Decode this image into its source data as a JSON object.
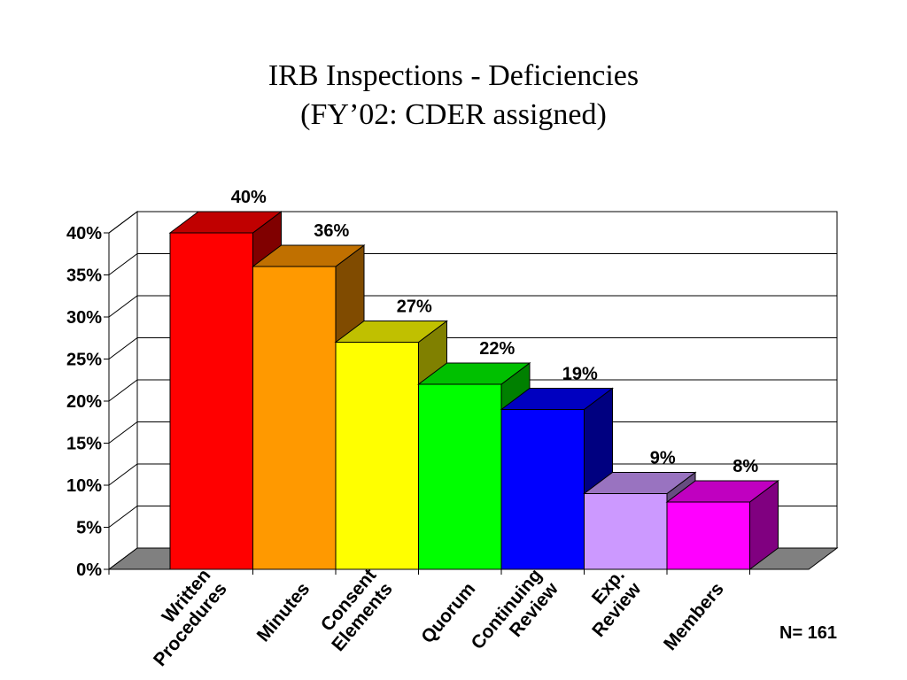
{
  "title": "IRB Inspections - Deficiencies",
  "subtitle": "(FY’02: CDER assigned)",
  "note": "N= 161",
  "chart_data": {
    "type": "bar",
    "title": "IRB Inspections - Deficiencies",
    "subtitle": "(FY’02: CDER assigned)",
    "xlabel": "",
    "ylabel": "",
    "ylim": [
      0,
      40
    ],
    "yticks": [
      0,
      5,
      10,
      15,
      20,
      25,
      30,
      35,
      40
    ],
    "ytick_labels": [
      "0%",
      "5%",
      "10%",
      "15%",
      "20%",
      "25%",
      "30%",
      "35%",
      "40%"
    ],
    "grid": true,
    "three_d": true,
    "categories": [
      {
        "lines": [
          "Written",
          "Procedures"
        ],
        "label": "Written Procedures"
      },
      {
        "lines": [
          "Minutes"
        ],
        "label": "Minutes"
      },
      {
        "lines": [
          "Consent",
          "Elements"
        ],
        "label": "Consent Elements"
      },
      {
        "lines": [
          "Quorum"
        ],
        "label": "Quorum"
      },
      {
        "lines": [
          "Continuing",
          "Review"
        ],
        "label": "Continuing Review"
      },
      {
        "lines": [
          "Exp.",
          "Review"
        ],
        "label": "Exp. Review"
      },
      {
        "lines": [
          "Members"
        ],
        "label": "Members"
      }
    ],
    "values": [
      40,
      36,
      27,
      22,
      19,
      9,
      8
    ],
    "data_labels": [
      "40%",
      "36%",
      "27%",
      "22%",
      "19%",
      "9%",
      "8%"
    ],
    "colors": [
      {
        "front": "#ff0000",
        "top": "#c00000",
        "side": "#800000"
      },
      {
        "front": "#ff9900",
        "top": "#c07000",
        "side": "#804b00"
      },
      {
        "front": "#ffff00",
        "top": "#c0c000",
        "side": "#808000"
      },
      {
        "front": "#00ff00",
        "top": "#00c000",
        "side": "#008000"
      },
      {
        "front": "#0000ff",
        "top": "#0000c0",
        "side": "#000080"
      },
      {
        "front": "#cc99ff",
        "top": "#9973c0",
        "side": "#664d80"
      },
      {
        "front": "#ff00ff",
        "top": "#c000c0",
        "side": "#800080"
      }
    ],
    "floor_color": "#808080"
  }
}
